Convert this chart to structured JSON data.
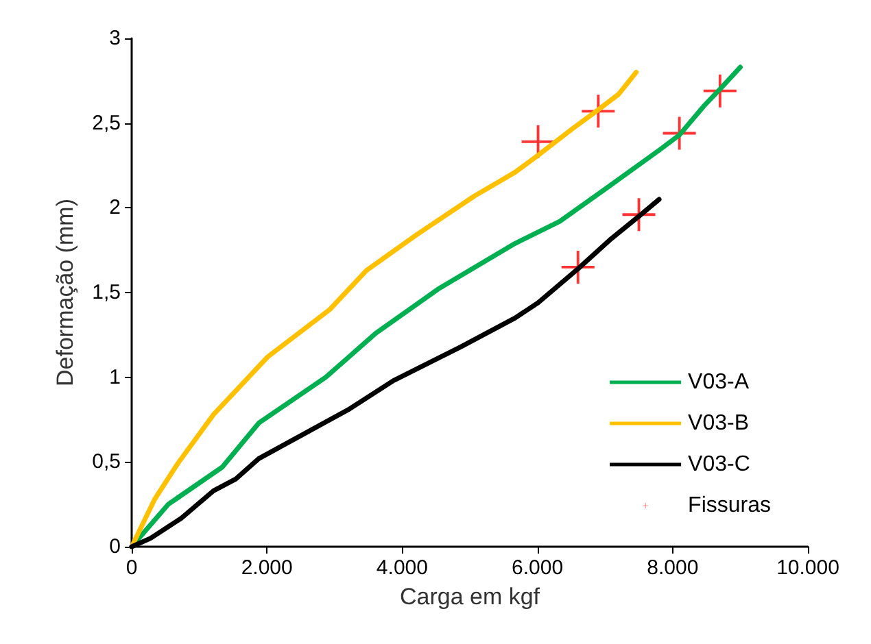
{
  "chart_data": {
    "type": "line",
    "xlabel": "Carga em kgf",
    "ylabel": "Deformação (mm)",
    "xlim": [
      0,
      10000
    ],
    "ylim": [
      0,
      3
    ],
    "xticks": [
      0,
      {
        "value": 2000,
        "label": "2.000"
      },
      {
        "value": 4000,
        "label": "4.000"
      },
      {
        "value": 6000,
        "label": "6.000"
      },
      {
        "value": 8000,
        "label": "8.000"
      },
      {
        "value": 10000,
        "label": "10.000"
      }
    ],
    "yticks": [
      0,
      {
        "value": 0.5,
        "label": "0,5"
      },
      1,
      {
        "value": 1.5,
        "label": "1,5"
      },
      2,
      {
        "value": 2.5,
        "label": "2,5"
      },
      3
    ],
    "grid": false,
    "legend": "bottom right",
    "line_style": "solid",
    "series": [
      {
        "name": "V03-A",
        "color": "#00b050",
        "marker": "none",
        "x": [
          0,
          540,
          1340,
          1880,
          2870,
          3610,
          4530,
          5670,
          6330,
          7000,
          7800,
          8100,
          8460,
          8700,
          9000
        ],
        "values": [
          0,
          0.25,
          0.47,
          0.73,
          1.0,
          1.26,
          1.52,
          1.79,
          1.92,
          2.11,
          2.34,
          2.43,
          2.6,
          2.7,
          2.83
        ]
      },
      {
        "name": "V03-B",
        "color": "#ffc000",
        "marker": "none",
        "x": [
          0,
          340,
          680,
          1210,
          2010,
          2930,
          3470,
          4210,
          5070,
          5670,
          6010,
          6530,
          6870,
          7200,
          7460
        ],
        "values": [
          0,
          0.28,
          0.49,
          0.78,
          1.12,
          1.4,
          1.63,
          1.84,
          2.07,
          2.21,
          2.31,
          2.47,
          2.57,
          2.67,
          2.8
        ]
      },
      {
        "name": "V03-C",
        "color": "#000000",
        "marker": "none",
        "x": [
          0,
          280,
          740,
          1210,
          1540,
          1880,
          3210,
          3870,
          4870,
          5670,
          6010,
          6600,
          7070,
          7500,
          7800
        ],
        "values": [
          0,
          0.05,
          0.17,
          0.33,
          0.4,
          0.52,
          0.81,
          0.98,
          1.18,
          1.35,
          1.44,
          1.64,
          1.81,
          1.95,
          2.05
        ]
      },
      {
        "name": "Fissuras",
        "type": "scatter",
        "color": "#ff0000",
        "marker": "cross",
        "x": [
          6010,
          6900,
          8100,
          8700,
          6600,
          7500
        ],
        "values": [
          2.39,
          2.57,
          2.44,
          2.69,
          1.65,
          1.96
        ]
      }
    ]
  }
}
